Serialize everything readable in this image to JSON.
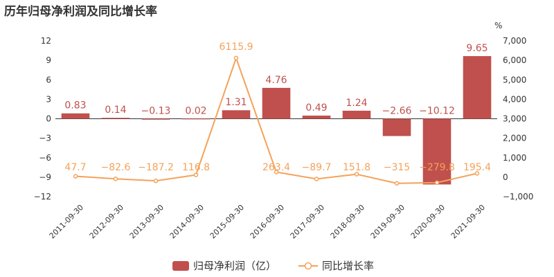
{
  "chart_data": {
    "title": "历年归母净利润及同比增长率",
    "categories": [
      "2011-09-30",
      "2012-09-30",
      "2013-09-30",
      "2014-09-30",
      "2015-09-30",
      "2016-09-30",
      "2017-09-30",
      "2018-09-30",
      "2019-09-30",
      "2020-09-30",
      "2021-09-30"
    ],
    "y_left": {
      "ylim": [
        -12,
        12
      ],
      "ticks": [
        "12",
        "9",
        "6",
        "3",
        "0",
        "−3",
        "−6",
        "−9",
        "−12"
      ]
    },
    "y_right": {
      "unit_label": "%",
      "ylim": [
        -1000,
        7000
      ],
      "ticks": [
        "7,000",
        "6,000",
        "5,000",
        "4,000",
        "3,000",
        "2,000",
        "1,000",
        "0",
        "−1,000"
      ]
    },
    "series": [
      {
        "name": "归母净利润（亿）",
        "type": "bar",
        "axis": "left",
        "color": "#c0504d",
        "values": [
          0.83,
          0.14,
          -0.13,
          0.02,
          1.31,
          4.76,
          0.49,
          1.24,
          -2.66,
          -10.12,
          9.65
        ],
        "labels": [
          "0.83",
          "0.14",
          "−0.13",
          "0.02",
          "1.31",
          "4.76",
          "0.49",
          "1.24",
          "−2.66",
          "−10.12",
          "9.65"
        ]
      },
      {
        "name": "同比增长率",
        "type": "line",
        "axis": "right",
        "color": "#f4a259",
        "values": [
          47.7,
          -82.6,
          -187.2,
          116.8,
          6115.9,
          263.4,
          -89.7,
          151.8,
          -315,
          -279.8,
          195.4
        ],
        "labels": [
          "47.7",
          "−82.6",
          "−187.2",
          "116.8",
          "6115.9",
          "263.4",
          "−89.7",
          "151.8",
          "−315",
          "−279.8",
          "195.4"
        ]
      }
    ],
    "legend_position": "bottom-center",
    "grid": false
  }
}
